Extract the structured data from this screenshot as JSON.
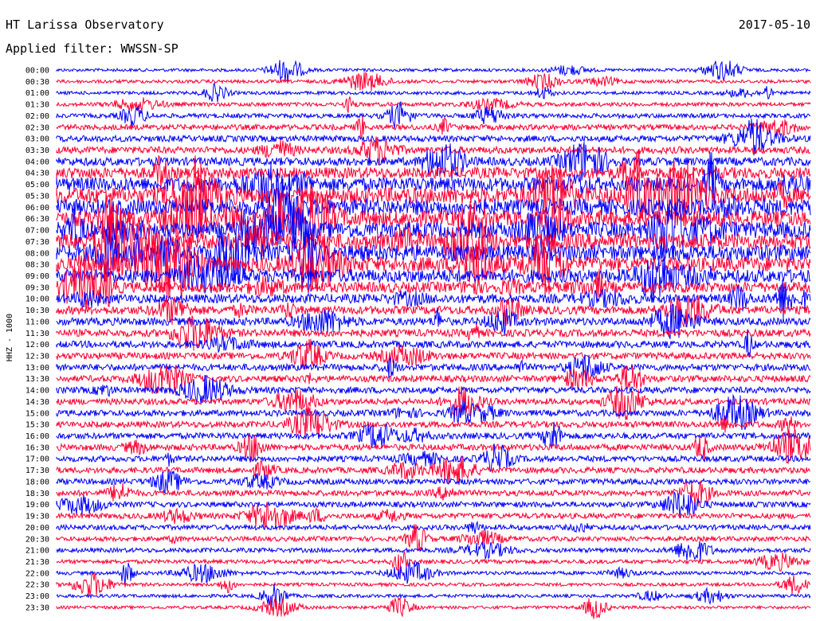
{
  "header": {
    "station": "HT Larissa Observatory",
    "date": "2017-05-10",
    "filter": "Applied filter: WWSSN-SP"
  },
  "chart_data": {
    "type": "line",
    "ylabel": "HHZ - 1000",
    "colors": [
      "#0000ff",
      "#ff0033"
    ],
    "rows": [
      "00:00",
      "00:30",
      "01:00",
      "01:30",
      "02:00",
      "02:30",
      "03:00",
      "03:30",
      "04:00",
      "04:30",
      "05:00",
      "05:30",
      "06:00",
      "06:30",
      "07:00",
      "07:30",
      "08:00",
      "08:30",
      "09:00",
      "09:30",
      "10:00",
      "10:30",
      "11:00",
      "11:30",
      "12:00",
      "12:30",
      "13:00",
      "13:30",
      "14:00",
      "14:30",
      "15:00",
      "15:30",
      "16:00",
      "16:30",
      "17:00",
      "17:30",
      "18:00",
      "18:30",
      "19:00",
      "19:30",
      "20:00",
      "20:30",
      "21:00",
      "21:30",
      "22:00",
      "22:30",
      "23:00",
      "23:30"
    ],
    "activity": [
      0.08,
      0.1,
      0.1,
      0.14,
      0.18,
      0.25,
      0.3,
      0.35,
      0.45,
      0.65,
      0.85,
      1.0,
      1.0,
      1.0,
      1.0,
      1.0,
      1.0,
      0.9,
      0.8,
      0.6,
      0.5,
      0.45,
      0.4,
      0.38,
      0.35,
      0.33,
      0.33,
      0.32,
      0.32,
      0.3,
      0.3,
      0.3,
      0.3,
      0.3,
      0.28,
      0.28,
      0.27,
      0.27,
      0.25,
      0.25,
      0.22,
      0.2,
      0.18,
      0.15,
      0.12,
      0.1,
      0.1,
      0.08
    ]
  }
}
